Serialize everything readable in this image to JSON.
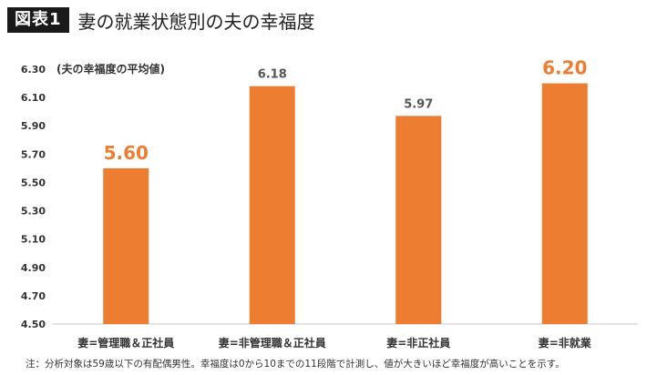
{
  "header": {
    "badge": "図表1",
    "title": "妻の就業状態別の夫の幸福度"
  },
  "note": "注：分析対象は59歳以下の有配偶男性。幸福度は0から10までの11段階で計測し、値が大きいほど幸福度が高いことを示す。",
  "colors": {
    "bar": "#ed7d31",
    "highlight_label": "#ed7d31",
    "normal_label": "#555555",
    "axis": "#d9d9d9"
  },
  "chart_data": {
    "type": "bar",
    "ylabel": "(夫の幸福度の平均値)",
    "categories": [
      "妻=管理職＆正社員",
      "妻=非管理職＆正社員",
      "妻=非正社員",
      "妻=非就業"
    ],
    "values": [
      5.6,
      6.18,
      5.97,
      6.2
    ],
    "value_labels": [
      "5.60",
      "6.18",
      "5.97",
      "6.20"
    ],
    "highlighted": [
      true,
      false,
      false,
      true
    ],
    "ylim": [
      4.5,
      6.3
    ],
    "yticks": [
      4.5,
      4.7,
      4.9,
      5.1,
      5.3,
      5.5,
      5.7,
      5.9,
      6.1,
      6.3
    ],
    "ytick_labels": [
      "4.50",
      "4.70",
      "4.90",
      "5.10",
      "5.30",
      "5.50",
      "5.70",
      "5.90",
      "6.10",
      "6.30"
    ],
    "grid": false,
    "legend": "none"
  }
}
